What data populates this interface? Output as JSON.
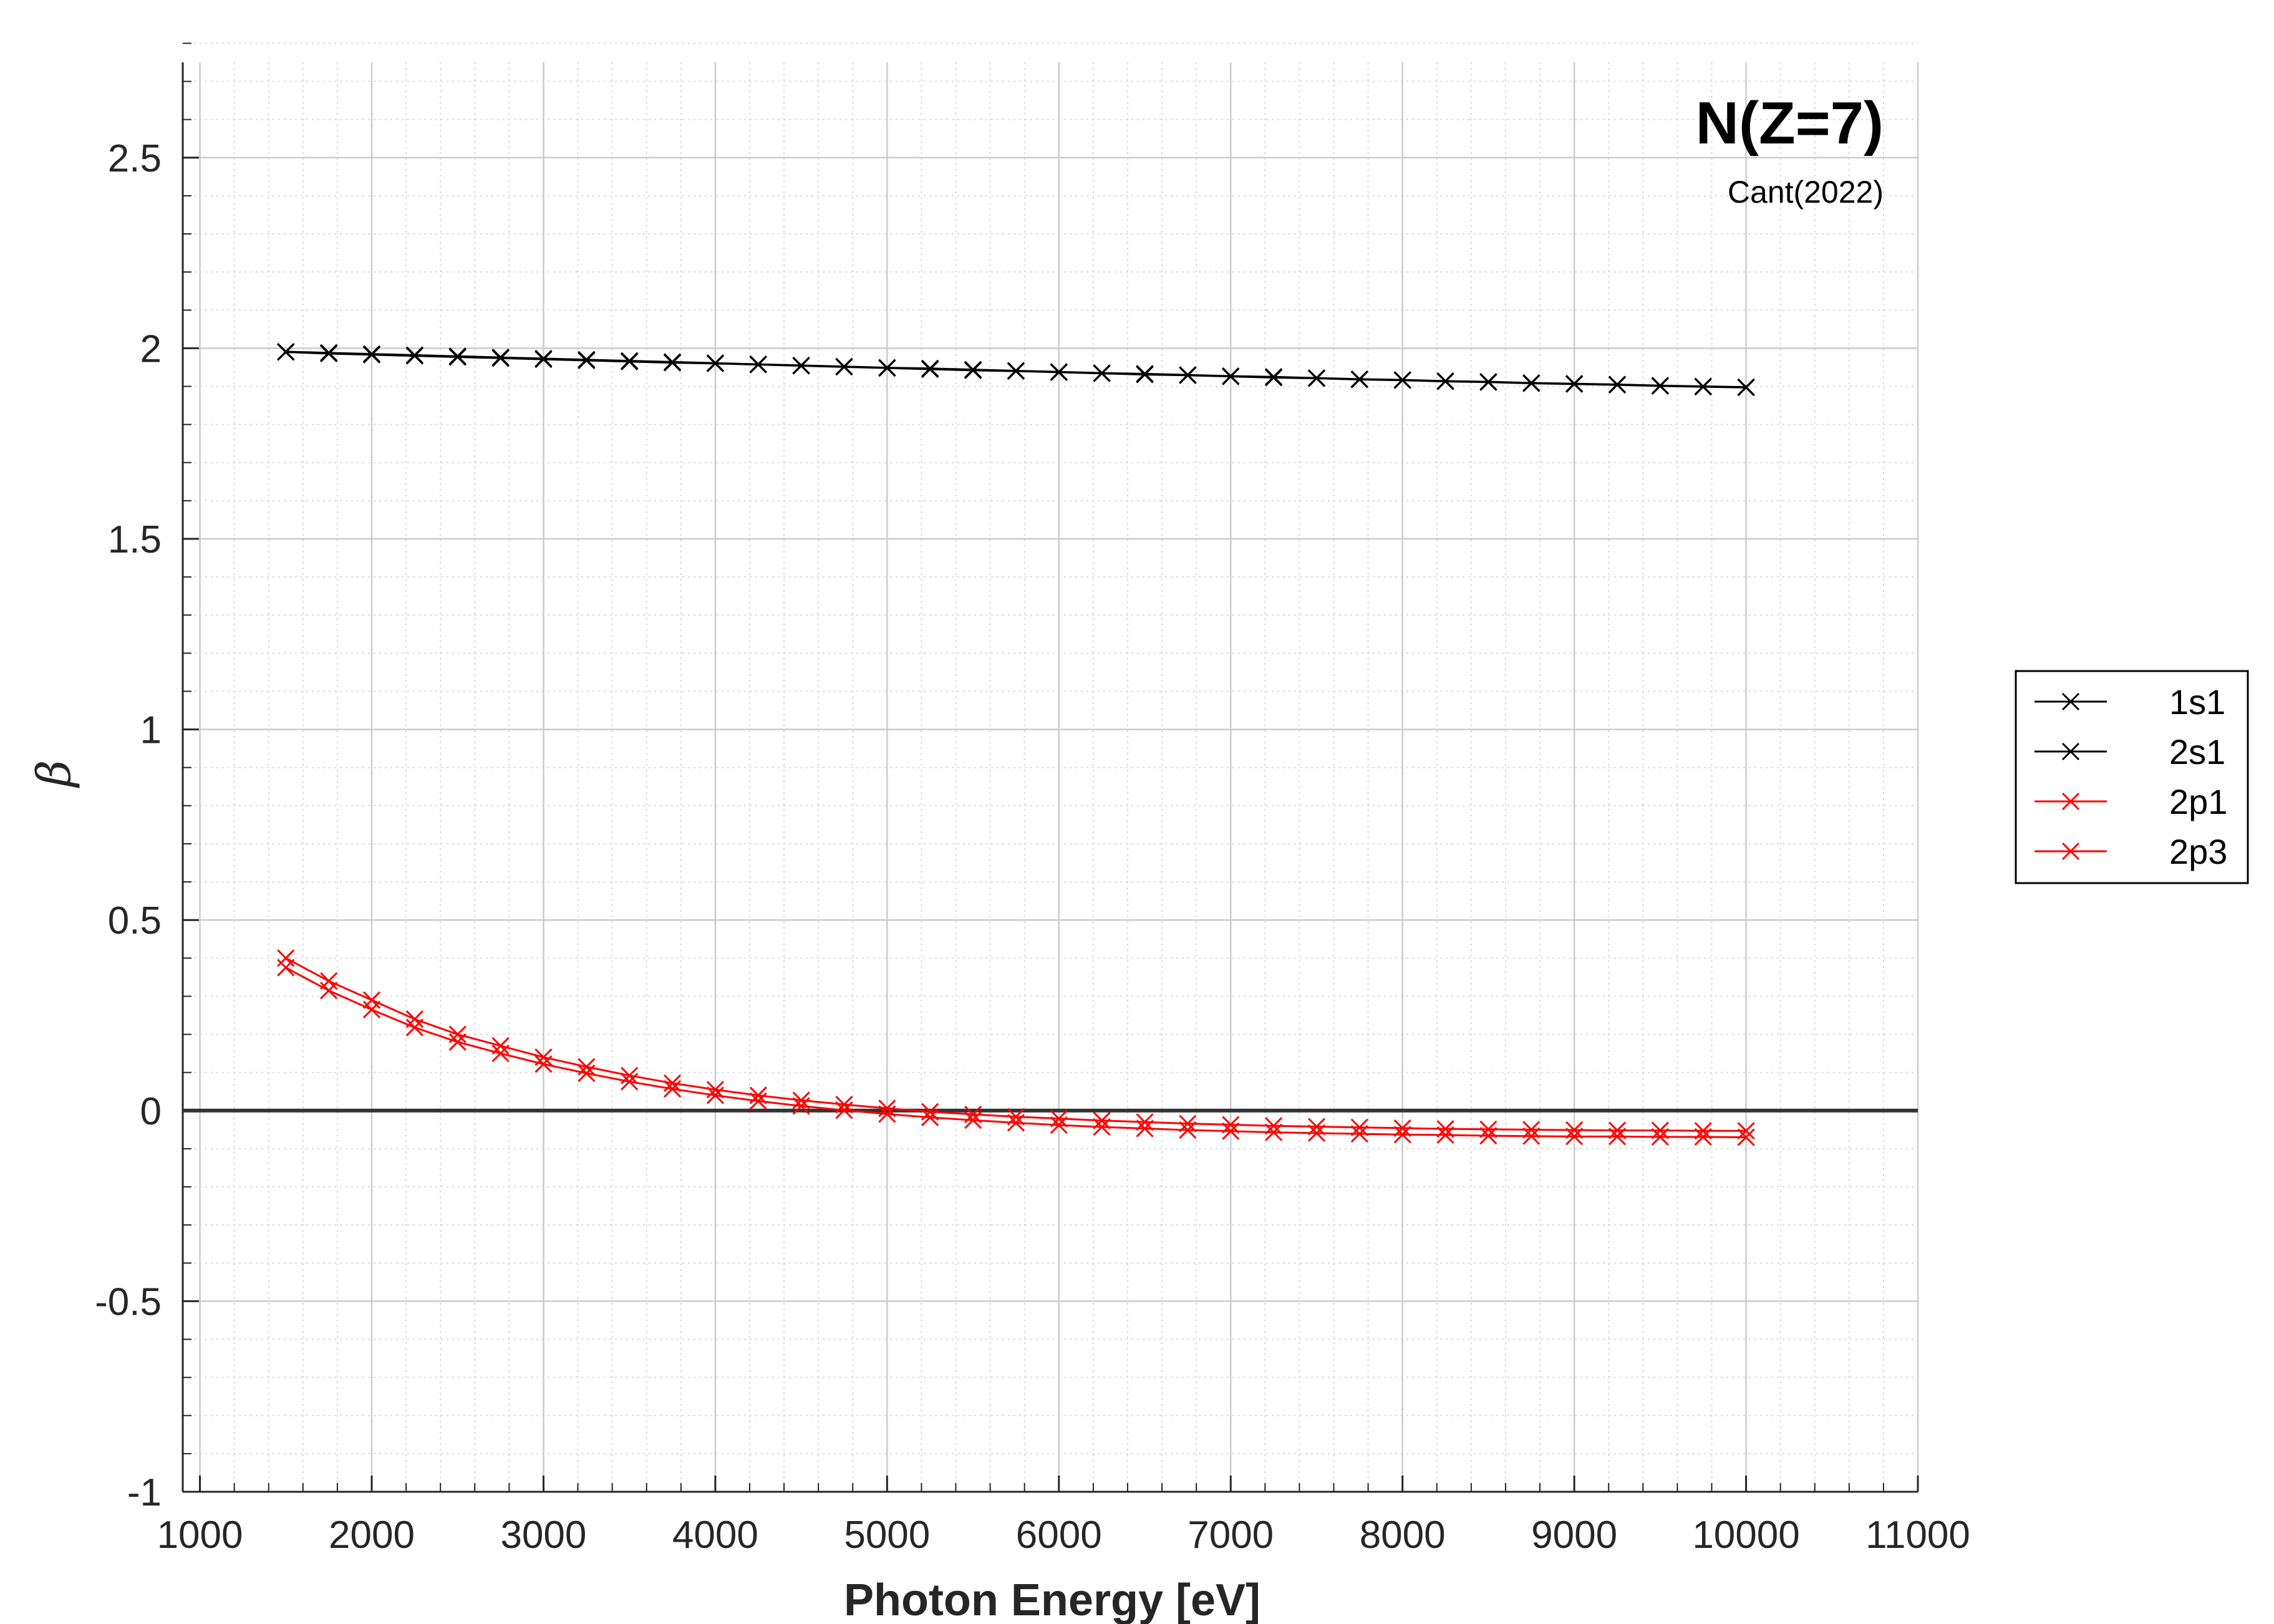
{
  "chart_data": {
    "type": "line",
    "title": "N(Z=7)",
    "subtitle": "Cant(2022)",
    "xlabel": "Photon Energy [eV]",
    "ylabel": "β",
    "xlim": [
      900,
      11000
    ],
    "ylim": [
      -1,
      2.75
    ],
    "xticks": [
      1000,
      2000,
      3000,
      4000,
      5000,
      6000,
      7000,
      8000,
      9000,
      10000,
      11000
    ],
    "yticks": [
      -1,
      -0.5,
      0,
      0.5,
      1,
      1.5,
      2,
      2.5
    ],
    "xtick_labels": [
      "1000",
      "2000",
      "3000",
      "4000",
      "5000",
      "6000",
      "7000",
      "8000",
      "9000",
      "10000",
      "11000"
    ],
    "ytick_labels": [
      "-1",
      "-0.5",
      "0",
      "0.5",
      "1",
      "1.5",
      "2",
      "2.5"
    ],
    "grid": true,
    "minor_grid": true,
    "zero_line": true,
    "legend_position": "outside-right",
    "x": [
      1500,
      1750,
      2000,
      2250,
      2500,
      2750,
      3000,
      3250,
      3500,
      3750,
      4000,
      4250,
      4500,
      4750,
      5000,
      5250,
      5500,
      5750,
      6000,
      6250,
      6500,
      6750,
      7000,
      7250,
      7500,
      7750,
      8000,
      8250,
      8500,
      8750,
      9000,
      9250,
      9500,
      9750,
      10000
    ],
    "series": [
      {
        "name": "1s1",
        "color": "#000000",
        "marker": "x",
        "values": [
          1.99,
          1.986,
          1.983,
          1.98,
          1.977,
          1.974,
          1.971,
          1.968,
          1.965,
          1.962,
          1.96,
          1.957,
          1.954,
          1.951,
          1.948,
          1.945,
          1.942,
          1.94,
          1.937,
          1.934,
          1.931,
          1.929,
          1.926,
          1.923,
          1.921,
          1.918,
          1.916,
          1.913,
          1.911,
          1.908,
          1.906,
          1.904,
          1.901,
          1.899,
          1.897
        ]
      },
      {
        "name": "2s1",
        "color": "#000000",
        "marker": "x",
        "values": [
          1.991,
          1.988,
          1.985,
          1.982,
          1.979,
          1.976,
          1.973,
          1.97,
          1.967,
          1.964,
          1.961,
          1.958,
          1.955,
          1.952,
          1.949,
          1.947,
          1.944,
          1.941,
          1.938,
          1.935,
          1.933,
          1.93,
          1.927,
          1.925,
          1.922,
          1.919,
          1.917,
          1.914,
          1.912,
          1.909,
          1.907,
          1.905,
          1.902,
          1.9,
          1.898
        ]
      },
      {
        "name": "2p1",
        "color": "#ff0000",
        "marker": "x",
        "values": [
          0.4,
          0.34,
          0.29,
          0.24,
          0.2,
          0.17,
          0.14,
          0.115,
          0.092,
          0.072,
          0.055,
          0.04,
          0.027,
          0.016,
          0.006,
          -0.003,
          -0.01,
          -0.016,
          -0.021,
          -0.026,
          -0.03,
          -0.034,
          -0.037,
          -0.04,
          -0.042,
          -0.044,
          -0.046,
          -0.048,
          -0.049,
          -0.05,
          -0.051,
          -0.052,
          -0.052,
          -0.053,
          -0.053
        ]
      },
      {
        "name": "2p3",
        "color": "#ff0000",
        "marker": "x",
        "values": [
          0.375,
          0.315,
          0.265,
          0.218,
          0.18,
          0.15,
          0.122,
          0.098,
          0.076,
          0.057,
          0.04,
          0.025,
          0.012,
          0.001,
          -0.009,
          -0.018,
          -0.025,
          -0.032,
          -0.038,
          -0.043,
          -0.047,
          -0.051,
          -0.054,
          -0.057,
          -0.059,
          -0.061,
          -0.063,
          -0.064,
          -0.066,
          -0.067,
          -0.068,
          -0.068,
          -0.069,
          -0.069,
          -0.07
        ]
      }
    ]
  }
}
